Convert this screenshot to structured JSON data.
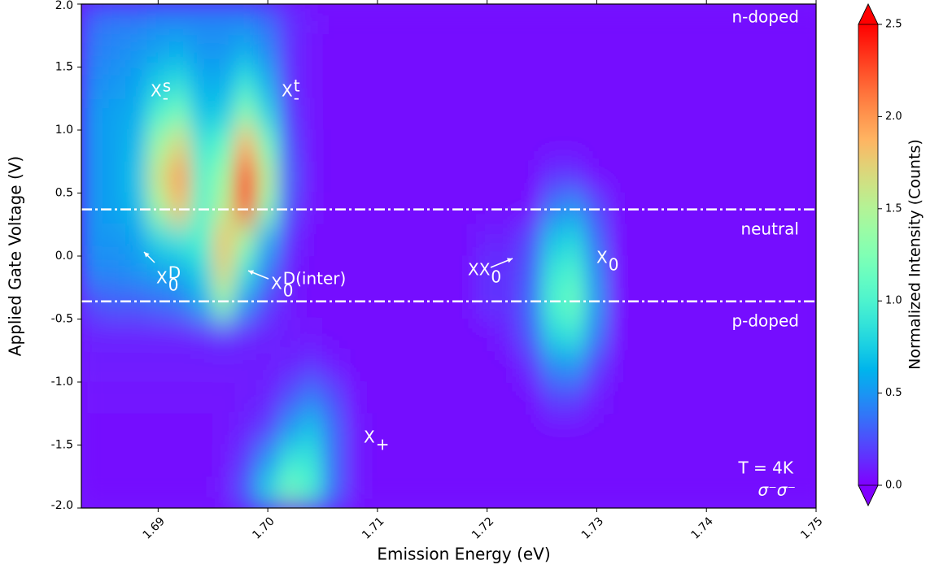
{
  "chart_data": {
    "type": "heatmap",
    "xlabel": "Emission Energy (eV)",
    "ylabel": "Applied Gate Voltage (V)",
    "colorbar_label": "Normalized Intensity (Counts)",
    "colormap": "rainbow",
    "xlim": [
      1.683,
      1.75
    ],
    "ylim": [
      -2,
      2
    ],
    "xticks": [
      1.69,
      {
        "value": 1.7,
        "label": "1.70"
      },
      1.71,
      1.72,
      1.73,
      1.74,
      1.75
    ],
    "yticks": [
      {
        "value": 2,
        "label": "2.0"
      },
      1.5,
      {
        "value": 1,
        "label": "1.0"
      },
      0.5,
      {
        "value": 0,
        "label": "0.0"
      },
      -0.5,
      {
        "value": -1,
        "label": "-1.0"
      },
      -1.5,
      {
        "value": -2,
        "label": "-2.0"
      }
    ],
    "clim": [
      0,
      2.5
    ],
    "cticks": [
      {
        "value": 0,
        "label": "0.0"
      },
      0.5,
      {
        "value": 1,
        "label": "1.0"
      },
      1.5,
      {
        "value": 2,
        "label": "2.0"
      },
      2.5
    ],
    "hlines": [
      0.37,
      -0.36
    ],
    "x": [
      1.684,
      1.686,
      1.688,
      1.69,
      1.692,
      1.694,
      1.696,
      1.698,
      1.7,
      1.702,
      1.704,
      1.706,
      1.708,
      1.71,
      1.712,
      1.714,
      1.716,
      1.718,
      1.72,
      1.722,
      1.724,
      1.726,
      1.728,
      1.73,
      1.732,
      1.734,
      1.736,
      1.738,
      1.74,
      1.742,
      1.744,
      1.746,
      1.748,
      1.75
    ],
    "y": [
      1.875,
      1.625,
      1.375,
      1.125,
      0.875,
      0.625,
      0.375,
      0.125,
      -0.125,
      -0.375,
      -0.625,
      -0.875,
      -1.125,
      -1.375,
      -1.625,
      -1.875
    ],
    "z": [
      [
        0.35,
        0.4,
        0.4,
        0.45,
        0.45,
        0.45,
        0.45,
        0.45,
        0.35,
        0.15,
        0.08,
        0.05,
        0.05,
        0.05,
        0.05,
        0.05,
        0.05,
        0.05,
        0.05,
        0.05,
        0.05,
        0.05,
        0.05,
        0.05,
        0.05,
        0.05,
        0.05,
        0.05,
        0.05,
        0.05,
        0.05,
        0.05,
        0.05,
        0.05
      ],
      [
        0.4,
        0.45,
        0.5,
        0.55,
        0.6,
        0.5,
        0.5,
        0.6,
        0.45,
        0.15,
        0.06,
        0.05,
        0.05,
        0.05,
        0.05,
        0.05,
        0.05,
        0.05,
        0.05,
        0.05,
        0.05,
        0.05,
        0.05,
        0.05,
        0.05,
        0.05,
        0.05,
        0.05,
        0.05,
        0.05,
        0.05,
        0.05,
        0.05,
        0.05
      ],
      [
        0.45,
        0.5,
        0.55,
        0.75,
        0.85,
        0.6,
        0.6,
        0.9,
        0.6,
        0.15,
        0.06,
        0.05,
        0.05,
        0.05,
        0.05,
        0.05,
        0.05,
        0.05,
        0.05,
        0.05,
        0.05,
        0.05,
        0.05,
        0.05,
        0.05,
        0.05,
        0.05,
        0.05,
        0.05,
        0.05,
        0.05,
        0.05,
        0.05,
        0.05
      ],
      [
        0.5,
        0.55,
        0.6,
        1.0,
        1.2,
        0.7,
        0.75,
        1.3,
        0.8,
        0.2,
        0.06,
        0.05,
        0.05,
        0.05,
        0.05,
        0.05,
        0.05,
        0.05,
        0.05,
        0.05,
        0.05,
        0.05,
        0.05,
        0.05,
        0.05,
        0.05,
        0.05,
        0.05,
        0.05,
        0.05,
        0.05,
        0.05,
        0.05,
        0.05
      ],
      [
        0.5,
        0.55,
        0.65,
        1.4,
        1.7,
        0.9,
        1.1,
        1.9,
        1.2,
        0.25,
        0.07,
        0.05,
        0.05,
        0.05,
        0.05,
        0.05,
        0.05,
        0.05,
        0.05,
        0.05,
        0.05,
        0.05,
        0.05,
        0.05,
        0.05,
        0.05,
        0.05,
        0.05,
        0.05,
        0.05,
        0.05,
        0.05,
        0.05,
        0.05
      ],
      [
        0.5,
        0.55,
        0.7,
        1.6,
        2.0,
        1.0,
        1.4,
        2.4,
        1.5,
        0.3,
        0.07,
        0.05,
        0.05,
        0.05,
        0.05,
        0.05,
        0.05,
        0.05,
        0.05,
        0.05,
        0.05,
        0.15,
        0.15,
        0.05,
        0.05,
        0.05,
        0.05,
        0.05,
        0.05,
        0.05,
        0.05,
        0.05,
        0.05,
        0.05
      ],
      [
        0.5,
        0.55,
        0.65,
        1.4,
        1.8,
        1.0,
        1.5,
        2.3,
        1.3,
        0.25,
        0.06,
        0.05,
        0.05,
        0.05,
        0.05,
        0.05,
        0.05,
        0.05,
        0.05,
        0.05,
        0.05,
        0.4,
        0.5,
        0.25,
        0.05,
        0.05,
        0.05,
        0.05,
        0.05,
        0.05,
        0.05,
        0.05,
        0.05,
        0.05
      ],
      [
        0.5,
        0.5,
        0.55,
        0.8,
        0.9,
        1.0,
        1.8,
        1.4,
        0.6,
        0.15,
        0.05,
        0.05,
        0.05,
        0.05,
        0.05,
        0.05,
        0.05,
        0.05,
        0.1,
        0.1,
        0.25,
        0.7,
        0.8,
        0.35,
        0.05,
        0.05,
        0.05,
        0.05,
        0.05,
        0.05,
        0.05,
        0.05,
        0.05,
        0.05
      ],
      [
        0.45,
        0.45,
        0.5,
        0.55,
        0.6,
        0.8,
        1.7,
        0.9,
        0.4,
        0.1,
        0.05,
        0.05,
        0.05,
        0.05,
        0.05,
        0.05,
        0.05,
        0.05,
        0.15,
        0.15,
        0.3,
        0.9,
        1.0,
        0.45,
        0.05,
        0.05,
        0.05,
        0.05,
        0.05,
        0.05,
        0.05,
        0.05,
        0.05,
        0.05
      ],
      [
        0.25,
        0.3,
        0.3,
        0.35,
        0.4,
        0.6,
        1.3,
        0.5,
        0.2,
        0.08,
        0.05,
        0.05,
        0.05,
        0.05,
        0.05,
        0.05,
        0.05,
        0.05,
        0.15,
        0.15,
        0.35,
        1.0,
        1.15,
        0.5,
        0.05,
        0.05,
        0.05,
        0.05,
        0.05,
        0.05,
        0.05,
        0.05,
        0.05,
        0.05
      ],
      [
        0.1,
        0.1,
        0.1,
        0.1,
        0.1,
        0.12,
        0.15,
        0.12,
        0.1,
        0.08,
        0.06,
        0.05,
        0.05,
        0.05,
        0.05,
        0.05,
        0.05,
        0.05,
        0.05,
        0.12,
        0.3,
        0.8,
        0.9,
        0.4,
        0.05,
        0.05,
        0.05,
        0.05,
        0.05,
        0.05,
        0.05,
        0.05,
        0.05,
        0.05
      ],
      [
        0.08,
        0.08,
        0.08,
        0.08,
        0.08,
        0.08,
        0.08,
        0.08,
        0.08,
        0.1,
        0.15,
        0.08,
        0.05,
        0.05,
        0.05,
        0.05,
        0.05,
        0.05,
        0.05,
        0.05,
        0.15,
        0.45,
        0.5,
        0.2,
        0.05,
        0.05,
        0.05,
        0.05,
        0.05,
        0.05,
        0.05,
        0.05,
        0.05,
        0.05
      ],
      [
        0.06,
        0.06,
        0.06,
        0.06,
        0.06,
        0.06,
        0.06,
        0.08,
        0.1,
        0.25,
        0.4,
        0.25,
        0.06,
        0.05,
        0.05,
        0.05,
        0.05,
        0.05,
        0.05,
        0.05,
        0.05,
        0.2,
        0.2,
        0.08,
        0.05,
        0.05,
        0.05,
        0.05,
        0.05,
        0.05,
        0.05,
        0.05,
        0.05,
        0.05
      ],
      [
        0.05,
        0.05,
        0.05,
        0.05,
        0.05,
        0.05,
        0.06,
        0.1,
        0.2,
        0.5,
        0.7,
        0.35,
        0.08,
        0.05,
        0.05,
        0.05,
        0.05,
        0.05,
        0.05,
        0.05,
        0.05,
        0.05,
        0.05,
        0.05,
        0.05,
        0.05,
        0.05,
        0.05,
        0.05,
        0.05,
        0.05,
        0.05,
        0.05,
        0.05
      ],
      [
        0.05,
        0.05,
        0.05,
        0.05,
        0.05,
        0.05,
        0.06,
        0.2,
        0.5,
        0.9,
        0.9,
        0.35,
        0.08,
        0.05,
        0.05,
        0.05,
        0.05,
        0.05,
        0.05,
        0.05,
        0.05,
        0.05,
        0.05,
        0.05,
        0.05,
        0.05,
        0.05,
        0.05,
        0.05,
        0.05,
        0.05,
        0.05,
        0.05,
        0.05
      ],
      [
        0.05,
        0.05,
        0.05,
        0.05,
        0.05,
        0.05,
        0.08,
        0.3,
        0.8,
        1.2,
        1.0,
        0.35,
        0.08,
        0.05,
        0.05,
        0.05,
        0.05,
        0.05,
        0.05,
        0.05,
        0.05,
        0.05,
        0.05,
        0.05,
        0.05,
        0.05,
        0.05,
        0.05,
        0.05,
        0.05,
        0.05,
        0.05,
        0.05,
        0.05
      ]
    ],
    "annotations": [
      {
        "text": "n-doped"
      },
      {
        "text": "neutral"
      },
      {
        "text": "p-doped"
      },
      {
        "text": "T = 4K"
      },
      {
        "text": "σ⁻σ⁻"
      },
      {
        "text": "X",
        "sup": "s",
        "sub": "-"
      },
      {
        "text": "X",
        "sup": "t",
        "sub": "-"
      },
      {
        "text": "X",
        "sup": "D",
        "sub": "0"
      },
      {
        "text": "X",
        "sup": "D(inter)",
        "sub": "0"
      },
      {
        "text": "XX",
        "sub": "0"
      },
      {
        "text": "X",
        "sub": "0"
      },
      {
        "text": "X",
        "sub": "+"
      }
    ]
  }
}
